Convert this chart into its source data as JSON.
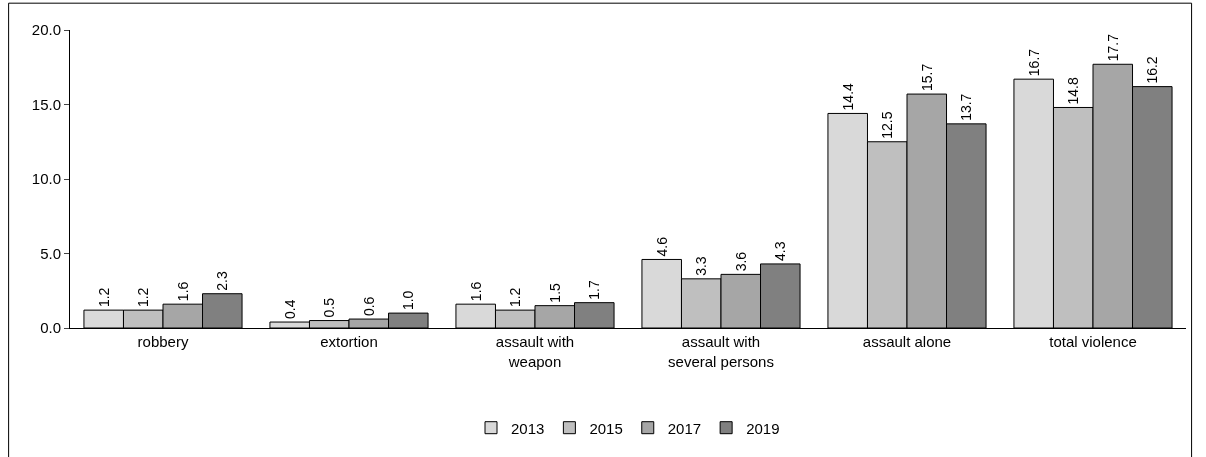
{
  "chart_data": {
    "type": "bar",
    "categories": [
      "robbery",
      "extortion",
      "assault with weapon",
      "assault with several persons",
      "assault alone",
      "total violence"
    ],
    "series": [
      {
        "name": "2013",
        "color": "#d9d9d9",
        "values": [
          1.2,
          0.4,
          1.6,
          4.6,
          14.4,
          16.7
        ],
        "value_labels": [
          "1.2",
          "0.4",
          "1.6",
          "4.6",
          "14.4",
          "16.7"
        ]
      },
      {
        "name": "2015",
        "color": "#bfbfbf",
        "values": [
          1.2,
          0.5,
          1.2,
          3.3,
          12.5,
          14.8
        ],
        "value_labels": [
          "1.2",
          "0.5",
          "1.2",
          "3.3",
          "12.5",
          "14.8"
        ]
      },
      {
        "name": "2017",
        "color": "#a6a6a6",
        "values": [
          1.6,
          0.6,
          1.5,
          3.6,
          15.7,
          17.7
        ],
        "value_labels": [
          "1.6",
          "0.6",
          "1.5",
          "3.6",
          "15.7",
          "17.7"
        ]
      },
      {
        "name": "2019",
        "color": "#808080",
        "values": [
          2.3,
          1.0,
          1.7,
          4.3,
          13.7,
          16.2
        ],
        "value_labels": [
          "2.3",
          "1.0",
          "1.7",
          "4.3",
          "13.7",
          "16.2"
        ]
      }
    ],
    "ylim": [
      0,
      20
    ],
    "yticks": [
      {
        "value": 0,
        "label": "0.0"
      },
      {
        "value": 5,
        "label": "5.0"
      },
      {
        "value": 10,
        "label": "10.0"
      },
      {
        "value": 15,
        "label": "15.0"
      },
      {
        "value": 20,
        "label": "20.0"
      }
    ],
    "legend": "bottom"
  }
}
